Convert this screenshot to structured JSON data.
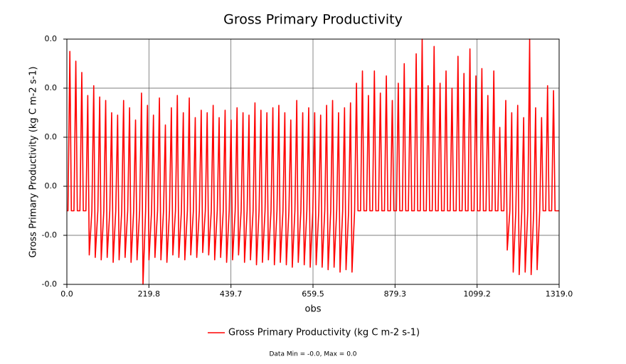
{
  "chart_data": {
    "type": "line",
    "title": "Gross Primary Productivity",
    "xlabel": "obs",
    "ylabel": "Gross Primary Productivity (kg C m-2 s-1)",
    "annotation": "Data Min = -0.0, Max = 0.0",
    "grid": true,
    "legend": "bottom",
    "xlim": [
      0,
      1319
    ],
    "xticks": [
      {
        "value": 0,
        "label": "0.0"
      },
      219.8,
      439.7,
      659.5,
      879.3,
      1099.2,
      {
        "value": 1319,
        "label": "1319.0"
      }
    ],
    "ylim": [
      -0.02,
      0.03
    ],
    "yticks": [
      {
        "value": -0.02,
        "label": "-0.0"
      },
      {
        "value": -0.01,
        "label": "-0.0"
      },
      {
        "value": 0,
        "label": "0.0"
      },
      {
        "value": 0.01,
        "label": "0.0"
      },
      {
        "value": 0.02,
        "label": "0.0"
      },
      {
        "value": 0.03,
        "label": "0.0"
      }
    ],
    "x": [
      0,
      3,
      8,
      12,
      19,
      24,
      28,
      35,
      40,
      44,
      51,
      56,
      60,
      67,
      72,
      76,
      83,
      88,
      92,
      99,
      104,
      108,
      115,
      120,
      124,
      131,
      136,
      140,
      147,
      152,
      156,
      163,
      168,
      172,
      179,
      184,
      188,
      195,
      200,
      204,
      211,
      216,
      220,
      227,
      232,
      236,
      243,
      248,
      252,
      259,
      264,
      268,
      275,
      280,
      284,
      291,
      296,
      300,
      307,
      312,
      316,
      323,
      328,
      332,
      339,
      344,
      348,
      355,
      360,
      364,
      371,
      376,
      380,
      387,
      392,
      396,
      403,
      408,
      412,
      419,
      424,
      428,
      435,
      440,
      444,
      451,
      456,
      460,
      467,
      472,
      476,
      483,
      488,
      492,
      499,
      504,
      508,
      515,
      520,
      524,
      531,
      536,
      540,
      547,
      552,
      556,
      563,
      568,
      572,
      579,
      584,
      588,
      595,
      600,
      604,
      611,
      616,
      620,
      627,
      632,
      636,
      643,
      648,
      652,
      659,
      664,
      668,
      675,
      680,
      684,
      691,
      696,
      700,
      707,
      712,
      716,
      723,
      728,
      732,
      739,
      744,
      748,
      755,
      760,
      764,
      771,
      776,
      780,
      787,
      792,
      796,
      803,
      808,
      812,
      819,
      824,
      828,
      835,
      840,
      844,
      851,
      856,
      860,
      867,
      872,
      876,
      883,
      888,
      892,
      899,
      904,
      908,
      915,
      920,
      924,
      931,
      936,
      940,
      947,
      952,
      956,
      963,
      968,
      972,
      979,
      984,
      988,
      995,
      1000,
      1004,
      1011,
      1016,
      1020,
      1027,
      1032,
      1036,
      1043,
      1048,
      1052,
      1059,
      1064,
      1068,
      1075,
      1080,
      1084,
      1091,
      1096,
      1100,
      1107,
      1112,
      1116,
      1123,
      1128,
      1132,
      1139,
      1144,
      1148,
      1155,
      1160,
      1164,
      1171,
      1176,
      1180,
      1187,
      1192,
      1196,
      1203,
      1208,
      1212,
      1219,
      1224,
      1228,
      1235,
      1240,
      1244,
      1251,
      1256,
      1260,
      1267,
      1272,
      1276,
      1283,
      1288,
      1292,
      1299,
      1304,
      1308,
      1319
    ],
    "series": [
      {
        "name": "Gross Primary Productivity (kg C m-2 s-1)",
        "color": "#ff0000",
        "values": [
          -0.005,
          -0.005,
          0.0275,
          -0.005,
          -0.005,
          0.0255,
          -0.005,
          -0.005,
          0.0232,
          -0.005,
          -0.005,
          0.0185,
          -0.014,
          -0.005,
          0.0205,
          -0.0145,
          -0.005,
          0.0182,
          -0.015,
          -0.005,
          0.0175,
          -0.0145,
          -0.005,
          0.015,
          -0.0155,
          -0.005,
          0.0145,
          -0.015,
          -0.005,
          0.0175,
          -0.0145,
          -0.005,
          0.016,
          -0.0155,
          -0.005,
          0.0135,
          -0.015,
          -0.005,
          0.019,
          -0.02,
          -0.005,
          0.0165,
          -0.015,
          -0.005,
          0.0145,
          -0.0145,
          -0.005,
          0.018,
          -0.015,
          -0.005,
          0.0125,
          -0.0155,
          -0.005,
          0.016,
          -0.014,
          -0.005,
          0.0185,
          -0.0145,
          -0.005,
          0.015,
          -0.015,
          -0.005,
          0.018,
          -0.014,
          -0.005,
          0.014,
          -0.0145,
          -0.005,
          0.0155,
          -0.0135,
          -0.005,
          0.015,
          -0.014,
          -0.005,
          0.0165,
          -0.015,
          -0.005,
          0.014,
          -0.0145,
          -0.005,
          0.0155,
          -0.0155,
          -0.005,
          0.0135,
          -0.015,
          -0.005,
          0.016,
          -0.014,
          -0.005,
          0.015,
          -0.0155,
          -0.005,
          0.0145,
          -0.015,
          -0.005,
          0.017,
          -0.016,
          -0.005,
          0.0155,
          -0.0155,
          -0.005,
          0.015,
          -0.015,
          -0.005,
          0.016,
          -0.016,
          -0.005,
          0.0165,
          -0.0155,
          -0.005,
          0.015,
          -0.016,
          -0.005,
          0.0135,
          -0.0165,
          -0.005,
          0.0175,
          -0.0155,
          -0.005,
          0.015,
          -0.016,
          -0.005,
          0.016,
          -0.0165,
          -0.005,
          0.015,
          -0.016,
          -0.005,
          0.0145,
          -0.0165,
          -0.005,
          0.0165,
          -0.017,
          -0.005,
          0.0175,
          -0.0165,
          -0.005,
          0.015,
          -0.0175,
          -0.005,
          0.016,
          -0.017,
          -0.005,
          0.017,
          -0.0175,
          -0.005,
          0.021,
          -0.005,
          -0.005,
          0.0235,
          -0.005,
          -0.005,
          0.0185,
          -0.005,
          -0.005,
          0.0235,
          -0.005,
          -0.005,
          0.019,
          -0.005,
          -0.005,
          0.0225,
          -0.005,
          -0.005,
          0.0175,
          -0.005,
          -0.005,
          0.021,
          -0.005,
          -0.005,
          0.025,
          -0.005,
          -0.005,
          0.02,
          -0.005,
          -0.005,
          0.027,
          -0.005,
          -0.005,
          0.03,
          -0.005,
          -0.005,
          0.0205,
          -0.005,
          -0.005,
          0.0285,
          -0.005,
          -0.005,
          0.021,
          -0.005,
          -0.005,
          0.0235,
          -0.005,
          -0.005,
          0.02,
          -0.005,
          -0.005,
          0.0265,
          -0.005,
          -0.005,
          0.023,
          -0.005,
          -0.005,
          0.028,
          -0.005,
          -0.005,
          0.0225,
          -0.005,
          -0.005,
          0.024,
          -0.005,
          -0.005,
          0.0185,
          -0.005,
          -0.005,
          0.0235,
          -0.005,
          -0.005,
          0.012,
          -0.005,
          -0.005,
          0.0175,
          -0.013,
          -0.005,
          0.015,
          -0.0175,
          -0.005,
          0.0165,
          -0.018,
          -0.005,
          0.014,
          -0.0175,
          -0.005,
          0.03,
          -0.018,
          -0.005,
          0.016,
          -0.017,
          -0.005,
          0.014,
          -0.005,
          -0.005,
          0.0205,
          -0.005,
          -0.005,
          0.0195,
          -0.005,
          -0.005
        ]
      }
    ]
  }
}
